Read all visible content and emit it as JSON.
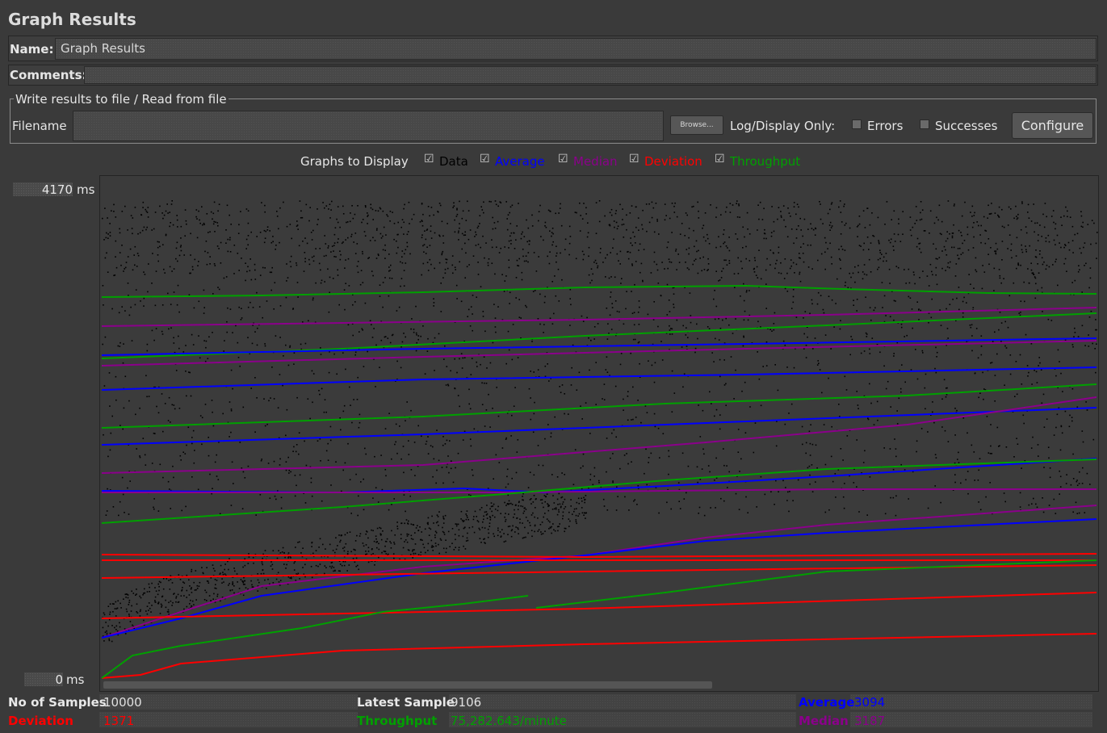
{
  "title": "Graph Results",
  "name_label": "Name:",
  "name_value": "Graph Results",
  "comments_label": "Comments:",
  "file_section": {
    "legend": "Write results to file / Read from file",
    "filename_label": "Filename",
    "filename_value": "",
    "browse_label": "Browse...",
    "log_display_label": "Log/Display Only:",
    "errors_label": "Errors",
    "successes_label": "Successes",
    "configure_label": "Configure"
  },
  "graphs_to_display": {
    "label": "Graphs to Display",
    "options": [
      {
        "label": "Data",
        "checked": true,
        "color": "#000000"
      },
      {
        "label": "Average",
        "checked": true,
        "color": "#0000ff"
      },
      {
        "label": "Median",
        "checked": true,
        "color": "#8b008b"
      },
      {
        "label": "Deviation",
        "checked": true,
        "color": "#ff0000"
      },
      {
        "label": "Throughput",
        "checked": true,
        "color": "#00a000"
      }
    ]
  },
  "graph": {
    "y_max": "4170",
    "y_min": "0",
    "unit": "ms"
  },
  "stats": {
    "samples_label": "No of Samples",
    "samples_value": "10000",
    "latest_label": "Latest Sample",
    "latest_value": "9106",
    "average_label": "Average",
    "average_value": "3094",
    "deviation_label": "Deviation",
    "deviation_value": "1371",
    "throughput_label": "Throughput",
    "throughput_value": "75,282.643/minute",
    "median_label": "Median",
    "median_value": "3187"
  },
  "colors": {
    "background": "#3a3a3a",
    "data": "#000000",
    "average": "#0000ff",
    "median": "#8b008b",
    "deviation": "#ff0000",
    "throughput": "#00a000"
  }
}
